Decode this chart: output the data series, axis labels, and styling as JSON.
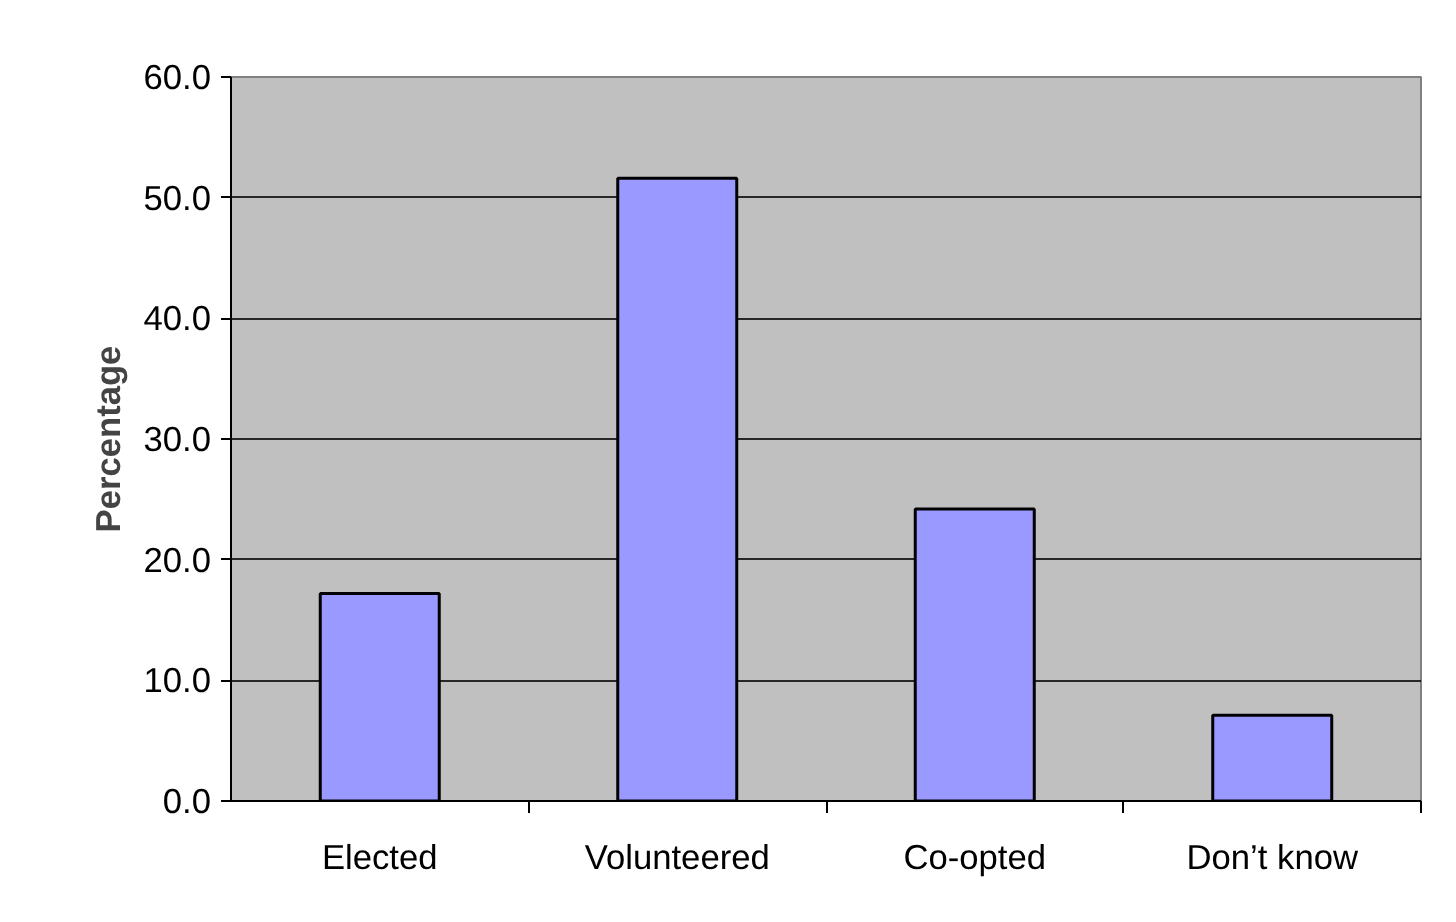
{
  "chart_data": {
    "type": "bar",
    "ylabel": "Percentage",
    "categories": [
      "Elected",
      "Volunteered",
      "Co-opted",
      "Don’t know"
    ],
    "values": [
      17.2,
      51.6,
      24.2,
      7.1
    ],
    "color": "#9999ff",
    "ylim": [
      0,
      60
    ],
    "yticks": [
      {
        "value": 0,
        "label": "0.0"
      },
      {
        "value": 10,
        "label": "10.0"
      },
      {
        "value": 20,
        "label": "20.0"
      },
      {
        "value": 30,
        "label": "30.0"
      },
      {
        "value": 40,
        "label": "40.0"
      },
      {
        "value": 50,
        "label": "50.0"
      },
      {
        "value": 60,
        "label": "60.0"
      }
    ],
    "grid": "y"
  }
}
